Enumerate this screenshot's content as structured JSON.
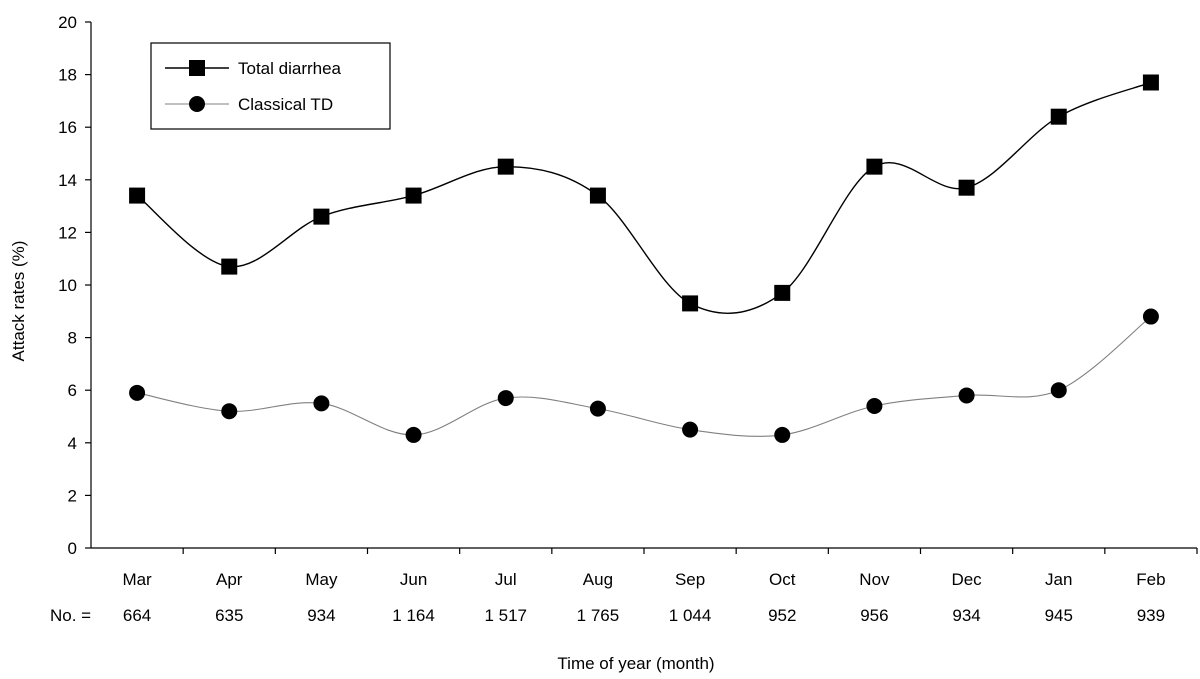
{
  "chart_data": {
    "type": "line",
    "xlabel": "Time of year (month)",
    "ylabel": "Attack rates (%)",
    "ylim": [
      0,
      20
    ],
    "yticks": [
      0,
      2,
      4,
      6,
      8,
      10,
      12,
      14,
      16,
      18,
      20
    ],
    "categories": [
      "Mar",
      "Apr",
      "May",
      "Jun",
      "Jul",
      "Aug",
      "Sep",
      "Oct",
      "Nov",
      "Dec",
      "Jan",
      "Feb"
    ],
    "counts_label": "No. =",
    "counts": [
      "664",
      "635",
      "934",
      "1 164",
      "1 517",
      "1 765",
      "1 044",
      "952",
      "956",
      "934",
      "945",
      "939"
    ],
    "series": [
      {
        "name": "Total diarrhea",
        "marker": "square",
        "color": "#000000",
        "values": [
          13.4,
          10.7,
          12.6,
          13.4,
          14.5,
          13.4,
          9.3,
          9.7,
          14.5,
          13.7,
          16.4,
          17.7
        ]
      },
      {
        "name": "Classical TD",
        "marker": "circle",
        "color": "#808080",
        "values": [
          5.9,
          5.2,
          5.5,
          4.3,
          5.7,
          5.3,
          4.5,
          4.3,
          5.4,
          5.8,
          6.0,
          8.8
        ]
      }
    ],
    "legend_position": "top-left",
    "grid": false
  }
}
